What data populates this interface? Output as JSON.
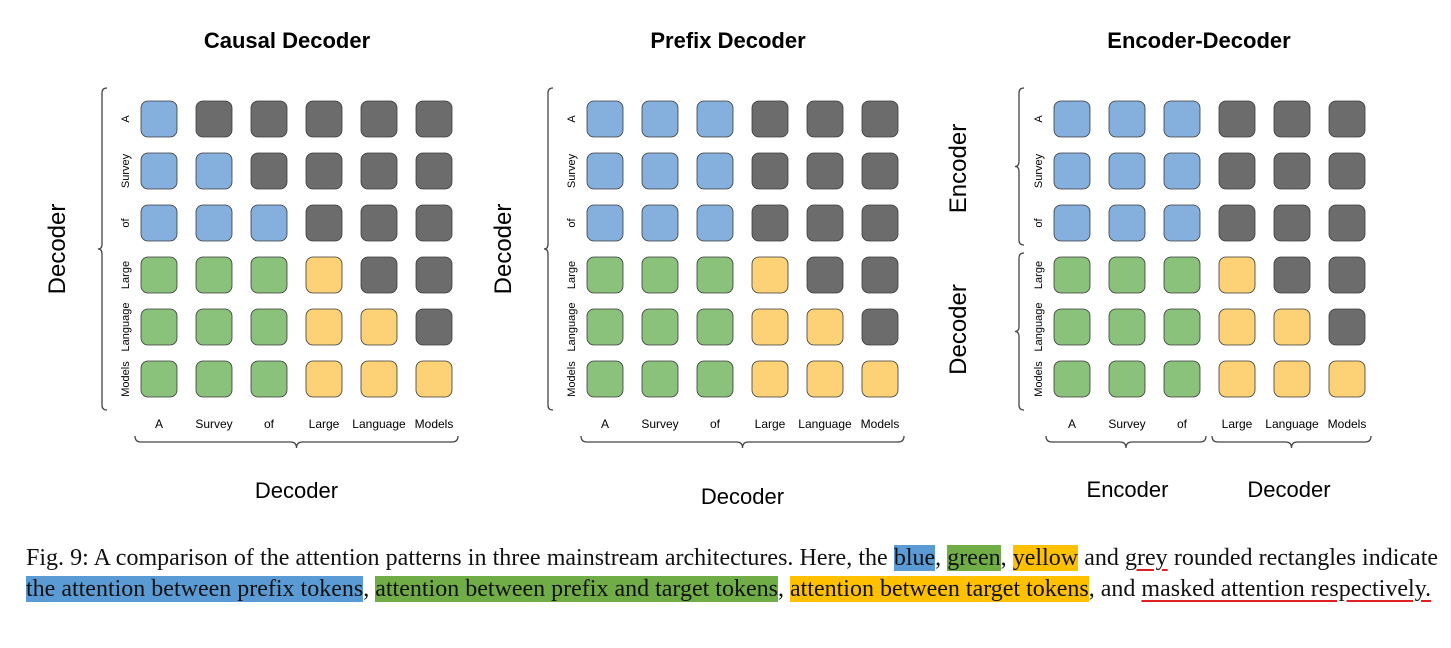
{
  "colors": {
    "blue": "#85b0de",
    "green": "#8ac17b",
    "yellow": "#fdd277",
    "grey": "#6c6c6c",
    "stroke": "#3a3a3a"
  },
  "tokens": [
    "A",
    "Survey",
    "of",
    "Large",
    "Language",
    "Models"
  ],
  "panels": [
    {
      "id": "causal-decoder",
      "title": "Causal Decoder",
      "left_labels": [
        "Decoder"
      ],
      "bottom_labels": [
        "Decoder"
      ],
      "matrix": [
        [
          "blue",
          "grey",
          "grey",
          "grey",
          "grey",
          "grey"
        ],
        [
          "blue",
          "blue",
          "grey",
          "grey",
          "grey",
          "grey"
        ],
        [
          "blue",
          "blue",
          "blue",
          "grey",
          "grey",
          "grey"
        ],
        [
          "green",
          "green",
          "green",
          "yellow",
          "grey",
          "grey"
        ],
        [
          "green",
          "green",
          "green",
          "yellow",
          "yellow",
          "grey"
        ],
        [
          "green",
          "green",
          "green",
          "yellow",
          "yellow",
          "yellow"
        ]
      ]
    },
    {
      "id": "prefix-decoder",
      "title": "Prefix Decoder",
      "left_labels": [
        "Decoder"
      ],
      "bottom_labels": [
        "Decoder"
      ],
      "matrix": [
        [
          "blue",
          "blue",
          "blue",
          "grey",
          "grey",
          "grey"
        ],
        [
          "blue",
          "blue",
          "blue",
          "grey",
          "grey",
          "grey"
        ],
        [
          "blue",
          "blue",
          "blue",
          "grey",
          "grey",
          "grey"
        ],
        [
          "green",
          "green",
          "green",
          "yellow",
          "grey",
          "grey"
        ],
        [
          "green",
          "green",
          "green",
          "yellow",
          "yellow",
          "grey"
        ],
        [
          "green",
          "green",
          "green",
          "yellow",
          "yellow",
          "yellow"
        ]
      ]
    },
    {
      "id": "encoder-decoder",
      "title": "Encoder-Decoder",
      "left_labels": [
        "Encoder",
        "Decoder"
      ],
      "bottom_labels": [
        "Encoder",
        "Decoder"
      ],
      "matrix": [
        [
          "blue",
          "blue",
          "blue",
          "grey",
          "grey",
          "grey"
        ],
        [
          "blue",
          "blue",
          "blue",
          "grey",
          "grey",
          "grey"
        ],
        [
          "blue",
          "blue",
          "blue",
          "grey",
          "grey",
          "grey"
        ],
        [
          "green",
          "green",
          "green",
          "yellow",
          "grey",
          "grey"
        ],
        [
          "green",
          "green",
          "green",
          "yellow",
          "yellow",
          "grey"
        ],
        [
          "green",
          "green",
          "green",
          "yellow",
          "yellow",
          "yellow"
        ]
      ]
    }
  ],
  "caption": {
    "lead": "Fig. 9: A comparison of the attention patterns in three mainstream architectures. Here, the ",
    "blue": "blue",
    "sep1": ", ",
    "green": "green",
    "sep2": ", ",
    "yellow": "yellow",
    "and1": " and ",
    "grey": "grey",
    "mid": " rounded rectangles indicate ",
    "blue_meaning": "the attention between prefix tokens",
    "sep3": ", ",
    "green_meaning": "attention between prefix and target tokens",
    "sep4": ", ",
    "yellow_meaning": "attention between target tokens",
    "and2": ", and ",
    "grey_meaning": "masked attention respectively."
  }
}
